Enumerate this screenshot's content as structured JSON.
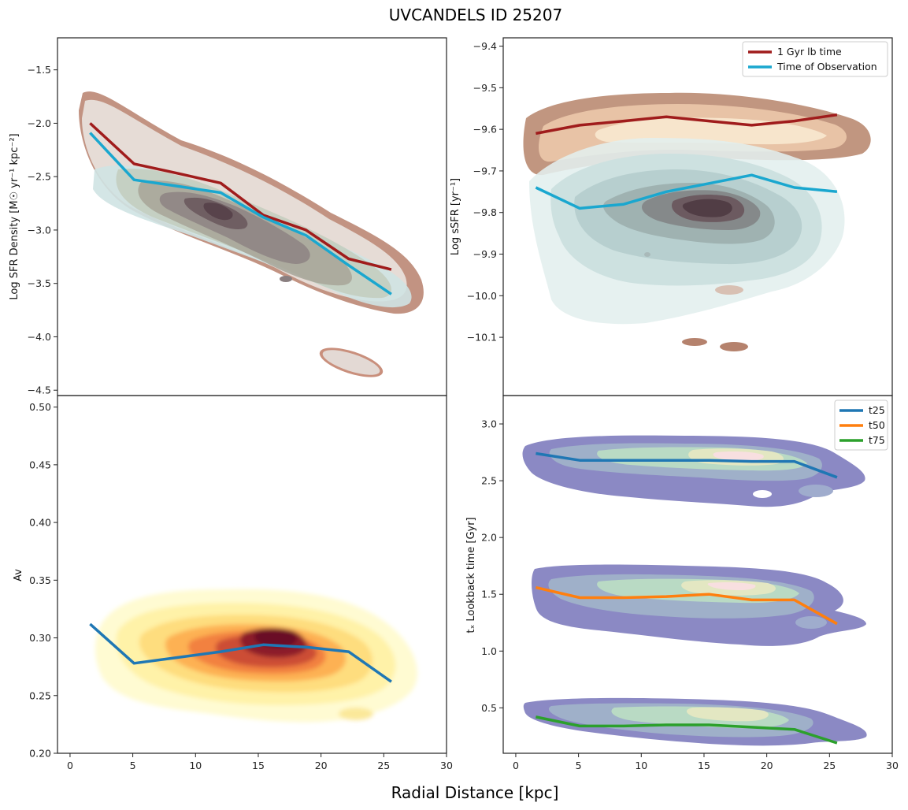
{
  "figure": {
    "title": "UVCANDELS ID 25207",
    "xlabel": "Radial Distance [kpc]"
  },
  "chart_data": [
    {
      "id": "p_sfrd",
      "type": "line",
      "ylabel": "Log SFR Density [M☉ yr⁻¹ kpc⁻²]",
      "xlim": [
        -1,
        30
      ],
      "ylim": [
        -4.55,
        -1.2
      ],
      "xticks": [
        0,
        5,
        10,
        15,
        20,
        25,
        30
      ],
      "yticks": [
        -4.5,
        -4.0,
        -3.5,
        -3.0,
        -2.5,
        -2.0,
        -1.5
      ],
      "yticklabels": [
        "−4.5",
        "−4.0",
        "−3.5",
        "−3.0",
        "−2.5",
        "−2.0",
        "−1.5"
      ],
      "series": [
        {
          "name": "1 Gyr lb time",
          "color": "#a01c1c",
          "x": [
            1.6,
            5.1,
            8.6,
            12,
            15.4,
            18.8,
            22.2,
            25.6
          ],
          "y": [
            -2.0,
            -2.38,
            -2.47,
            -2.56,
            -2.86,
            -3.0,
            -3.27,
            -3.37
          ]
        },
        {
          "name": "Time of Observation",
          "color": "#1aa7cf",
          "x": [
            1.6,
            5.1,
            8.6,
            12,
            15.4,
            18.8,
            22.2,
            25.6
          ],
          "y": [
            -2.09,
            -2.53,
            -2.59,
            -2.65,
            -2.88,
            -3.05,
            -3.33,
            -3.6
          ]
        }
      ]
    },
    {
      "id": "p_ssfr",
      "type": "line",
      "ylabel": "Log sSFR [yr⁻¹]",
      "xlim": [
        -1,
        30
      ],
      "ylim": [
        -10.24,
        -9.38
      ],
      "xticks": [
        0,
        5,
        10,
        15,
        20,
        25,
        30
      ],
      "yticks": [
        -10.1,
        -10.0,
        -9.9,
        -9.8,
        -9.7,
        -9.6,
        -9.5,
        -9.4
      ],
      "yticklabels": [
        "−10.1",
        "−10.0",
        "−9.9",
        "−9.8",
        "−9.7",
        "−9.6",
        "−9.5",
        "−9.4"
      ],
      "legend": {
        "position": "top-right",
        "entries": [
          "1 Gyr lb time",
          "Time of Observation"
        ]
      },
      "series": [
        {
          "name": "1 Gyr lb time",
          "color": "#a01c1c",
          "x": [
            1.6,
            5.1,
            8.6,
            12,
            15.4,
            18.8,
            22.2,
            25.6
          ],
          "y": [
            -9.61,
            -9.59,
            -9.58,
            -9.57,
            -9.58,
            -9.59,
            -9.58,
            -9.565
          ]
        },
        {
          "name": "Time of Observation",
          "color": "#1aa7cf",
          "x": [
            1.6,
            5.1,
            8.6,
            12,
            15.4,
            18.8,
            22.2,
            25.6
          ],
          "y": [
            -9.74,
            -9.79,
            -9.78,
            -9.75,
            -9.73,
            -9.71,
            -9.74,
            -9.75
          ]
        }
      ]
    },
    {
      "id": "p_av",
      "type": "line",
      "ylabel": "Av",
      "xlim": [
        -1,
        30
      ],
      "ylim": [
        0.2,
        0.51
      ],
      "xticks": [
        0,
        5,
        10,
        15,
        20,
        25,
        30
      ],
      "xticklabels": [
        "0",
        "5",
        "10",
        "15",
        "20",
        "25",
        "30"
      ],
      "yticks": [
        0.2,
        0.25,
        0.3,
        0.35,
        0.4,
        0.45,
        0.5
      ],
      "yticklabels": [
        "0.20",
        "0.25",
        "0.30",
        "0.35",
        "0.40",
        "0.45",
        "0.50"
      ],
      "series": [
        {
          "name": "Av",
          "color": "#1f77b4",
          "x": [
            1.6,
            5.1,
            8.6,
            12,
            15.4,
            18.8,
            22.2,
            25.6
          ],
          "y": [
            0.312,
            0.278,
            0.283,
            0.288,
            0.294,
            0.292,
            0.288,
            0.262
          ]
        }
      ]
    },
    {
      "id": "p_tx",
      "type": "line",
      "ylabel": "tₓ Lookback time [Gyr]",
      "xlim": [
        -1,
        30
      ],
      "ylim": [
        0.1,
        3.25
      ],
      "xticks": [
        0,
        5,
        10,
        15,
        20,
        25,
        30
      ],
      "xticklabels": [
        "0",
        "5",
        "10",
        "15",
        "20",
        "25",
        "30"
      ],
      "yticks": [
        0.5,
        1.0,
        1.5,
        2.0,
        2.5,
        3.0
      ],
      "yticklabels": [
        "0.5",
        "1.0",
        "1.5",
        "2.0",
        "2.5",
        "3.0"
      ],
      "legend": {
        "position": "top-right",
        "entries": [
          "t25",
          "t50",
          "t75"
        ]
      },
      "series": [
        {
          "name": "t25",
          "color": "#1f77b4",
          "x": [
            1.6,
            5.1,
            8.6,
            12,
            15.4,
            18.8,
            22.2,
            25.6
          ],
          "y": [
            2.74,
            2.68,
            2.68,
            2.68,
            2.68,
            2.67,
            2.67,
            2.53
          ]
        },
        {
          "name": "t50",
          "color": "#ff7f0e",
          "x": [
            1.6,
            5.1,
            8.6,
            12,
            15.4,
            18.8,
            22.2,
            25.6
          ],
          "y": [
            1.56,
            1.47,
            1.47,
            1.48,
            1.5,
            1.45,
            1.45,
            1.24
          ]
        },
        {
          "name": "t75",
          "color": "#2ca02c",
          "x": [
            1.6,
            5.1,
            8.6,
            12,
            15.4,
            18.8,
            22.2,
            25.6
          ],
          "y": [
            0.42,
            0.34,
            0.34,
            0.35,
            0.35,
            0.33,
            0.31,
            0.19
          ]
        }
      ]
    }
  ]
}
